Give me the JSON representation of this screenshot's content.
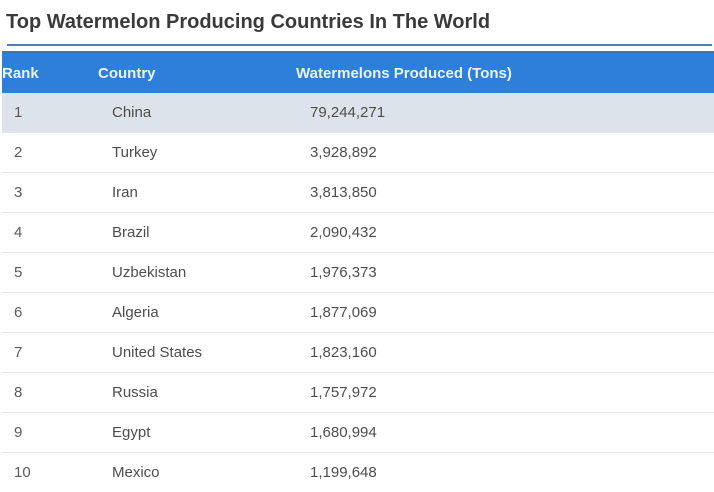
{
  "page": {
    "title": "Top Watermelon Producing Countries In The World"
  },
  "theme": {
    "header_bg": "#2d7fd9",
    "header_top_border": "#4076ab",
    "header_text": "#eaf4fd",
    "title_underline": "#4a82bc",
    "highlight_row_bg": "#dde3ea",
    "row_border": "#e4e4e4",
    "body_text": "#4d4d4d",
    "title_text": "#3a3a3a"
  },
  "table": {
    "columns": [
      "Rank",
      "Country",
      "Watermelons Produced (Tons)"
    ],
    "rows": [
      {
        "rank": "1",
        "country": "China",
        "produced": "79,244,271",
        "highlighted": true
      },
      {
        "rank": "2",
        "country": "Turkey",
        "produced": "3,928,892",
        "highlighted": false
      },
      {
        "rank": "3",
        "country": "Iran",
        "produced": "3,813,850",
        "highlighted": false
      },
      {
        "rank": "4",
        "country": "Brazil",
        "produced": "2,090,432",
        "highlighted": false
      },
      {
        "rank": "5",
        "country": "Uzbekistan",
        "produced": "1,976,373",
        "highlighted": false
      },
      {
        "rank": "6",
        "country": "Algeria",
        "produced": "1,877,069",
        "highlighted": false
      },
      {
        "rank": "7",
        "country": "United States",
        "produced": "1,823,160",
        "highlighted": false
      },
      {
        "rank": "8",
        "country": "Russia",
        "produced": "1,757,972",
        "highlighted": false
      },
      {
        "rank": "9",
        "country": "Egypt",
        "produced": "1,680,994",
        "highlighted": false
      },
      {
        "rank": "10",
        "country": "Mexico",
        "produced": "1,199,648",
        "highlighted": false
      }
    ]
  },
  "chart_data": {
    "type": "table",
    "title": "Top Watermelon Producing Countries In The World",
    "columns": [
      "Rank",
      "Country",
      "Watermelons Produced (Tons)"
    ],
    "categories": [
      "China",
      "Turkey",
      "Iran",
      "Brazil",
      "Uzbekistan",
      "Algeria",
      "United States",
      "Russia",
      "Egypt",
      "Mexico"
    ],
    "values": [
      79244271,
      3928892,
      3813850,
      2090432,
      1976373,
      1877069,
      1823160,
      1757972,
      1680994,
      1199648
    ],
    "value_unit": "Tons"
  }
}
